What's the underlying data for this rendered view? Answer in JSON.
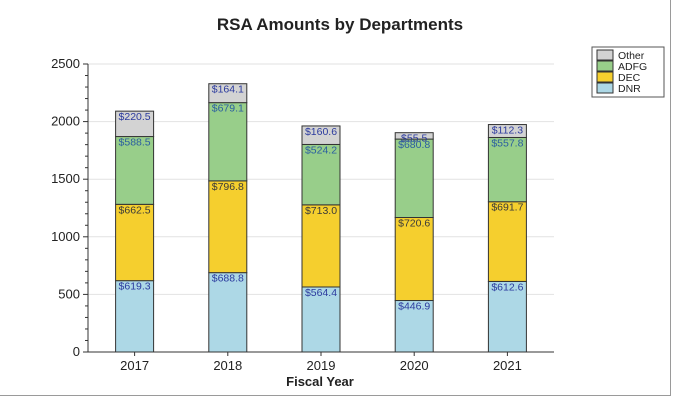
{
  "chart_data": {
    "type": "bar",
    "stacked": true,
    "title": "RSA Amounts by Departments",
    "xlabel": "Fiscal Year",
    "ylabel": "",
    "ylim": [
      0,
      2500
    ],
    "yticks": [
      0,
      500,
      1000,
      1500,
      2000,
      2500
    ],
    "grid": true,
    "legend_position": "top-right",
    "categories": [
      "2017",
      "2018",
      "2019",
      "2020",
      "2021"
    ],
    "series": [
      {
        "name": "DNR",
        "color": "#add8e6",
        "label_color": "#2b3a9e",
        "values": [
          619.3,
          688.8,
          564.4,
          446.9,
          612.6
        ],
        "labels": [
          "$619.3",
          "$688.8",
          "$564.4",
          "$446.9",
          "$612.6"
        ]
      },
      {
        "name": "DEC",
        "color": "#f5cf2e",
        "label_color": "#3a3a3a",
        "values": [
          662.5,
          796.8,
          713.0,
          720.6,
          691.7
        ],
        "labels": [
          "$662.5",
          "$796.8",
          "$713.0",
          "$720.6",
          "$691.7"
        ]
      },
      {
        "name": "ADFG",
        "color": "#98ce8a",
        "label_color": "#2b5ea0",
        "values": [
          588.5,
          679.1,
          524.2,
          680.8,
          557.8
        ],
        "labels": [
          "$588.5",
          "$679.1",
          "$524.2",
          "$680.8",
          "$557.8"
        ]
      },
      {
        "name": "Other",
        "color": "#d3d3d3",
        "label_color": "#2b3a9e",
        "values": [
          220.5,
          164.1,
          160.6,
          55.5,
          112.3
        ],
        "labels": [
          "$220.5",
          "$164.1",
          "$160.6",
          "$55.5",
          "$112.3"
        ]
      }
    ]
  }
}
